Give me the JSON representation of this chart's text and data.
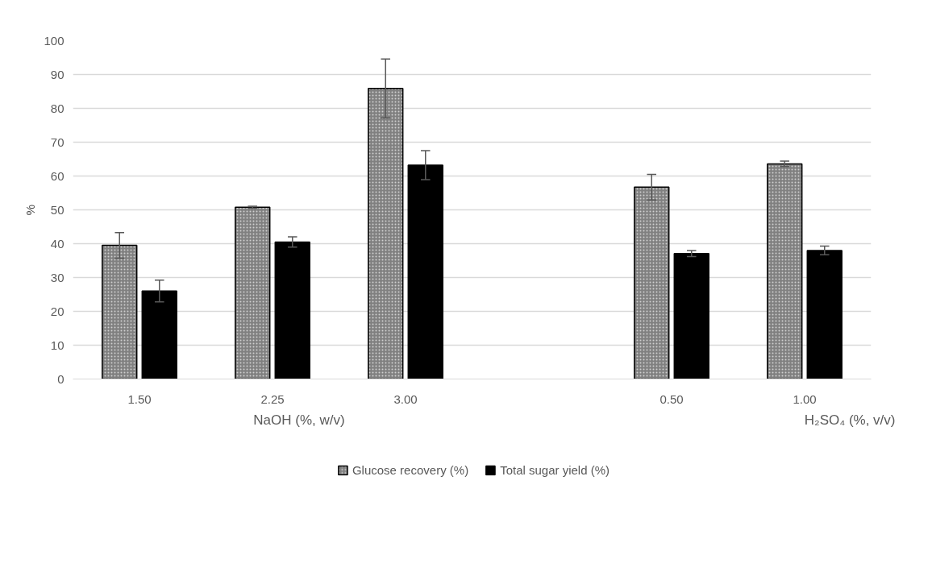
{
  "chart_data": {
    "type": "bar",
    "ylabel": "%",
    "categories": [
      "1.50",
      "2.25",
      "3.00",
      null,
      "0.50",
      "1.00"
    ],
    "series": [
      {
        "name": "Glucose recovery (%)",
        "color": "#808080",
        "values": [
          39.5,
          50.8,
          85.9,
          null,
          56.7,
          63.6
        ],
        "errors": [
          3.8,
          0.3,
          8.7,
          null,
          3.8,
          0.8
        ]
      },
      {
        "name": "Total sugar yield (%)",
        "color": "#000000",
        "values": [
          26.0,
          40.5,
          63.2,
          null,
          37.1,
          38.0
        ],
        "errors": [
          3.2,
          1.5,
          4.3,
          null,
          0.9,
          1.3
        ]
      }
    ],
    "annotations": [
      "NaOH (%, w/v)",
      "H₂SO₄ (%, v/v)"
    ],
    "ylim": [
      0,
      100
    ],
    "yticks": [
      0,
      10,
      20,
      30,
      40,
      50,
      60,
      70,
      80,
      90,
      100
    ],
    "grid": "y",
    "legend": "bottom"
  }
}
